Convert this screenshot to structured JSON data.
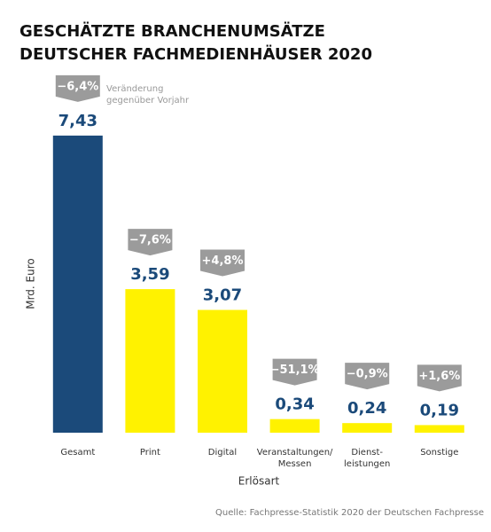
{
  "chart_data": {
    "type": "bar",
    "title": "GESCHÄTZTE BRANCHENUMSÄTZE\nDEUTSCHER FACHMEDIENHÄUSER 2020",
    "categories": [
      "Gesamt",
      "Print",
      "Digital",
      "Veranstaltungen/\nMessen",
      "Dienst-\nleistungen",
      "Sonstige"
    ],
    "values": [
      7.43,
      3.59,
      3.07,
      0.34,
      0.24,
      0.19
    ],
    "value_labels": [
      "7,43",
      "3,59",
      "3,07",
      "0,34",
      "0,24",
      "0,19"
    ],
    "colors": [
      "#1b4a7a",
      "#fff200",
      "#fff200",
      "#fff200",
      "#fff200",
      "#fff200"
    ],
    "change_labels": [
      "−6,4%",
      "−7,6%",
      "+4,8%",
      "−51,1%",
      "−0,9%",
      "+1,6%"
    ],
    "change_note": "Veränderung\ngegenüber Vorjahr",
    "y_axis_label": "Mrd. Euro",
    "x_axis_label": "Erlösart",
    "source": "Quelle: Fachpresse-Statistik 2020 der Deutschen Fachpresse"
  }
}
